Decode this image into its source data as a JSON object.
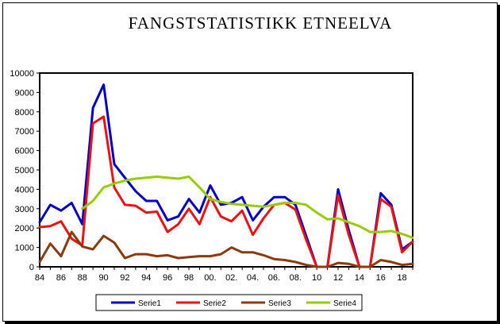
{
  "chart_data": {
    "type": "line",
    "title": "FANGSTSTATISTIKK ETNEELVA",
    "xlabel": "",
    "ylabel": "",
    "x": [
      84,
      85,
      86,
      87,
      88,
      89,
      90,
      91,
      92,
      93,
      94,
      95,
      96,
      97,
      98,
      99,
      100,
      101,
      102,
      103,
      104,
      105,
      106,
      107,
      108,
      109,
      110,
      111,
      112,
      113,
      114,
      115,
      116,
      117,
      118,
      119
    ],
    "x_tick_labels": [
      "84",
      "86",
      "88",
      "90",
      "92",
      "94",
      "96",
      "98",
      "00.",
      "02.",
      "04.",
      "06.",
      "08.",
      "10",
      "12",
      "14",
      "16",
      "18"
    ],
    "x_tick_values": [
      84,
      86,
      88,
      90,
      92,
      94,
      96,
      98,
      100,
      102,
      104,
      106,
      108,
      110,
      112,
      114,
      116,
      118
    ],
    "ylim": [
      0,
      10000
    ],
    "y_ticks": [
      0,
      1000,
      2000,
      3000,
      4000,
      5000,
      6000,
      7000,
      8000,
      9000,
      10000
    ],
    "grid": false,
    "legend": "bottom",
    "series": [
      {
        "name": "Serie1",
        "color": "#0000cc",
        "values": [
          2300,
          3200,
          2900,
          3300,
          2200,
          8200,
          9400,
          5300,
          4600,
          3900,
          3400,
          3400,
          2400,
          2600,
          3500,
          2800,
          4200,
          3200,
          3300,
          3600,
          2400,
          3100,
          3600,
          3600,
          3200,
          1600,
          0,
          0,
          4000,
          1900,
          0,
          0,
          3800,
          3200,
          900,
          1300
        ]
      },
      {
        "name": "Serie2",
        "color": "#ee1111",
        "values": [
          2050,
          2100,
          2350,
          1450,
          1100,
          7400,
          7750,
          4100,
          3200,
          3150,
          2800,
          2850,
          1800,
          2200,
          3000,
          2200,
          3600,
          2600,
          2350,
          2900,
          1650,
          2500,
          3200,
          3300,
          2950,
          1400,
          0,
          0,
          3700,
          1650,
          0,
          0,
          3500,
          3100,
          750,
          1300
        ]
      },
      {
        "name": "Serie3",
        "color": "#8b3a0f",
        "values": [
          250,
          1200,
          550,
          1800,
          1050,
          900,
          1600,
          1250,
          450,
          650,
          650,
          550,
          600,
          450,
          500,
          550,
          550,
          650,
          1000,
          750,
          750,
          600,
          400,
          350,
          250,
          100,
          0,
          0,
          200,
          150,
          0,
          0,
          350,
          250,
          100,
          150
        ]
      },
      {
        "name": "Serie4",
        "color": "#99cc00",
        "values": [
          null,
          null,
          null,
          null,
          3000,
          3400,
          4100,
          4300,
          4450,
          4550,
          4600,
          4650,
          4600,
          4550,
          4650,
          4100,
          3500,
          3350,
          3250,
          3200,
          3150,
          3100,
          3200,
          3300,
          3300,
          3200,
          2800,
          2450,
          2500,
          2300,
          2100,
          1800,
          1800,
          1850,
          1700,
          1500
        ]
      }
    ]
  }
}
